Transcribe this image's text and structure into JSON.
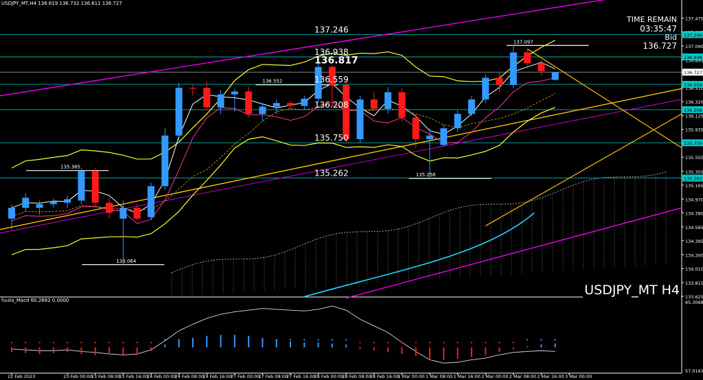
{
  "header": {
    "symbol_line": "USDJPY_MT,H4  136.619 136.732 136.611 136.727"
  },
  "info_panel": {
    "time_remain_label": "TIME REMAIN",
    "time_remain_value": "03:35:47",
    "bid_label": "Bid",
    "bid_value": "136.727"
  },
  "watermark": "USDJPY_MT H4",
  "chart_data": [
    {
      "type": "candlestick",
      "title": "USDJPY_MT,H4",
      "ylim": [
        133.625,
        137.65
      ],
      "y_ticks": [
        "137.475",
        "137.285",
        "137.090",
        "136.895",
        "136.727",
        "136.510",
        "136.320",
        "136.125",
        "135.935",
        "135.740",
        "135.550",
        "135.355",
        "135.165",
        "134.970",
        "134.780",
        "134.585",
        "134.395",
        "134.200",
        "134.010",
        "133.815",
        "133.625"
      ],
      "price_tags": [
        {
          "value": 137.246,
          "text": "137.246",
          "color": "#00c8c8"
        },
        {
          "value": 136.938,
          "text": "136.938",
          "color": "#00c8c8"
        },
        {
          "value": 136.727,
          "text": "136.727",
          "color": "#ffffff"
        },
        {
          "value": 136.559,
          "text": "136.559",
          "color": "#00c8c8"
        },
        {
          "value": 136.208,
          "text": "136.208",
          "color": "#00c8c8"
        },
        {
          "value": 135.75,
          "text": "135.750",
          "color": "#00c8c8"
        },
        {
          "value": 135.262,
          "text": "135.262",
          "color": "#00c8c8"
        }
      ],
      "level_labels": [
        {
          "value": 137.246,
          "text": "137.246"
        },
        {
          "value": 136.938,
          "text": "136.938"
        },
        {
          "value": 136.817,
          "text": "136.817",
          "bold": true
        },
        {
          "value": 136.559,
          "text": "136.559"
        },
        {
          "value": 136.208,
          "text": "136.208"
        },
        {
          "value": 135.75,
          "text": "135.750"
        },
        {
          "value": 135.262,
          "text": "135.262"
        }
      ],
      "swing_labels": [
        {
          "index": 18,
          "value": 136.552,
          "text": "136.552"
        },
        {
          "index": 4,
          "value": 135.365,
          "text": "135.365"
        },
        {
          "index": 8,
          "value": 134.064,
          "text": "134.064"
        },
        {
          "index": 36,
          "value": 137.097,
          "text": "137.097"
        },
        {
          "index": 29,
          "value": 135.256,
          "text": "135.256"
        }
      ],
      "x_labels": [
        {
          "index": 0,
          "text": "22 Feb 2023"
        },
        {
          "index": 4,
          "text": "23 Feb 00:00"
        },
        {
          "index": 6,
          "text": "23 Feb 08:00"
        },
        {
          "index": 8,
          "text": "23 Feb 16:00"
        },
        {
          "index": 10,
          "text": "24 Feb 00:00"
        },
        {
          "index": 12,
          "text": "24 Feb 08:00"
        },
        {
          "index": 14,
          "text": "24 Feb 16:00"
        },
        {
          "index": 16,
          "text": "27 Feb 00:00"
        },
        {
          "index": 18,
          "text": "27 Feb 08:00"
        },
        {
          "index": 20,
          "text": "27 Feb 16:00"
        },
        {
          "index": 22,
          "text": "28 Feb 00:00"
        },
        {
          "index": 24,
          "text": "28 Feb 08:00"
        },
        {
          "index": 26,
          "text": "28 Feb 16:00"
        },
        {
          "index": 28,
          "text": "1 Mar 00:00"
        },
        {
          "index": 30,
          "text": "1 Mar 08:00"
        },
        {
          "index": 32,
          "text": "1 Mar 16:00"
        },
        {
          "index": 34,
          "text": "2 Mar 00:00"
        },
        {
          "index": 36,
          "text": "2 Mar 08:00"
        },
        {
          "index": 38,
          "text": "2 Mar 16:00"
        },
        {
          "index": 40,
          "text": "3 Mar 00:00"
        }
      ],
      "candles": [
        {
          "o": 134.7,
          "h": 134.9,
          "l": 134.55,
          "c": 134.85
        },
        {
          "o": 134.85,
          "h": 135.05,
          "l": 134.8,
          "c": 134.99
        },
        {
          "o": 134.85,
          "h": 134.95,
          "l": 134.75,
          "c": 134.9
        },
        {
          "o": 134.9,
          "h": 134.98,
          "l": 134.85,
          "c": 134.94
        },
        {
          "o": 134.92,
          "h": 135.02,
          "l": 134.85,
          "c": 134.97
        },
        {
          "o": 134.95,
          "h": 135.4,
          "l": 134.9,
          "c": 135.36
        },
        {
          "o": 135.36,
          "h": 135.4,
          "l": 134.85,
          "c": 134.92
        },
        {
          "o": 134.92,
          "h": 135.0,
          "l": 134.7,
          "c": 134.78
        },
        {
          "o": 134.7,
          "h": 134.95,
          "l": 134.06,
          "c": 134.85
        },
        {
          "o": 134.85,
          "h": 134.9,
          "l": 134.68,
          "c": 134.7
        },
        {
          "o": 134.72,
          "h": 135.2,
          "l": 134.68,
          "c": 135.15
        },
        {
          "o": 135.15,
          "h": 135.95,
          "l": 135.1,
          "c": 135.85
        },
        {
          "o": 135.85,
          "h": 136.58,
          "l": 135.75,
          "c": 136.51
        },
        {
          "o": 136.51,
          "h": 136.55,
          "l": 136.4,
          "c": 136.5
        },
        {
          "o": 136.51,
          "h": 136.6,
          "l": 136.2,
          "c": 136.24
        },
        {
          "o": 136.24,
          "h": 136.48,
          "l": 136.15,
          "c": 136.42
        },
        {
          "o": 136.42,
          "h": 136.5,
          "l": 136.18,
          "c": 136.46
        },
        {
          "o": 136.46,
          "h": 136.52,
          "l": 136.1,
          "c": 136.15
        },
        {
          "o": 136.15,
          "h": 136.3,
          "l": 136.05,
          "c": 136.25
        },
        {
          "o": 136.25,
          "h": 136.35,
          "l": 136.15,
          "c": 136.3
        },
        {
          "o": 136.3,
          "h": 136.33,
          "l": 136.22,
          "c": 136.26
        },
        {
          "o": 136.26,
          "h": 136.4,
          "l": 136.2,
          "c": 136.36
        },
        {
          "o": 136.36,
          "h": 136.85,
          "l": 136.3,
          "c": 136.8
        },
        {
          "o": 136.8,
          "h": 136.82,
          "l": 136.25,
          "c": 136.55
        },
        {
          "o": 136.55,
          "h": 136.6,
          "l": 135.75,
          "c": 135.8
        },
        {
          "o": 135.8,
          "h": 136.4,
          "l": 135.75,
          "c": 136.35
        },
        {
          "o": 136.35,
          "h": 136.45,
          "l": 136.2,
          "c": 136.22
        },
        {
          "o": 136.22,
          "h": 136.52,
          "l": 136.15,
          "c": 136.45
        },
        {
          "o": 136.45,
          "h": 136.5,
          "l": 136.05,
          "c": 136.1
        },
        {
          "o": 136.1,
          "h": 136.15,
          "l": 135.68,
          "c": 135.8
        },
        {
          "o": 135.8,
          "h": 135.95,
          "l": 135.256,
          "c": 135.85
        },
        {
          "o": 135.72,
          "h": 136.0,
          "l": 135.7,
          "c": 135.95
        },
        {
          "o": 135.95,
          "h": 136.2,
          "l": 135.9,
          "c": 136.15
        },
        {
          "o": 136.15,
          "h": 136.4,
          "l": 136.12,
          "c": 136.35
        },
        {
          "o": 136.35,
          "h": 136.7,
          "l": 136.3,
          "c": 136.65
        },
        {
          "o": 136.65,
          "h": 136.72,
          "l": 136.45,
          "c": 136.55
        },
        {
          "o": 136.55,
          "h": 137.097,
          "l": 136.5,
          "c": 137.0
        },
        {
          "o": 137.0,
          "h": 137.05,
          "l": 136.78,
          "c": 136.85
        },
        {
          "o": 136.85,
          "h": 136.9,
          "l": 136.68,
          "c": 136.74
        },
        {
          "o": 136.62,
          "h": 136.732,
          "l": 136.611,
          "c": 136.727
        }
      ],
      "indicator": {
        "label": "fuuta_Macd 60.2682  0.0000",
        "ylim": [
          57.0161,
          65.3068
        ],
        "y_ticks": [
          "65.3068",
          "57.0161"
        ]
      }
    }
  ]
}
